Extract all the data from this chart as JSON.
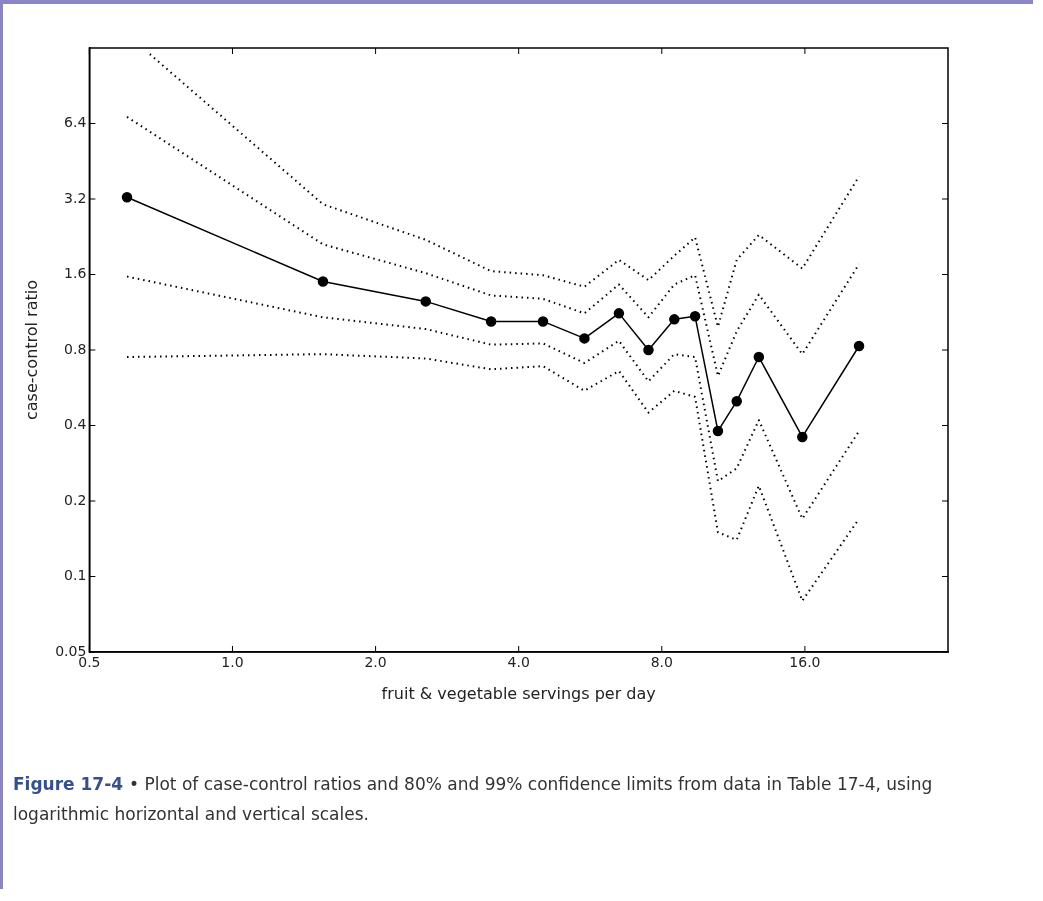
{
  "chart_data": {
    "type": "line",
    "xlabel": "fruit & vegetable servings per day",
    "ylabel": "case-control ratio",
    "annotations": [
      "Figure 17-4",
      "• Plot of case-control ratios and 80% and 99% confidence limits from data in Table 17-4, using logarithmic horizontal and vertical scales."
    ],
    "log": "xy",
    "grid": false,
    "legend": false,
    "xlim": [
      0.5,
      32
    ],
    "xticks": [
      0.5,
      {
        "value": 1,
        "label": "1.0"
      },
      {
        "value": 2,
        "label": "2.0"
      },
      {
        "value": 4,
        "label": "4.0"
      },
      {
        "value": 8,
        "label": "8.0"
      },
      {
        "value": 16,
        "label": "16.0"
      }
    ],
    "ylim": [
      0.05,
      12.8
    ],
    "yticks": [
      0.05,
      0.1,
      0.2,
      0.4,
      0.8,
      1.6,
      3.2,
      6.4
    ],
    "x": [
      0.6,
      1.55,
      2.55,
      3.5,
      4.5,
      5.5,
      6.5,
      7.5,
      8.5,
      9.4,
      10.5,
      11.5,
      12.8,
      15.8,
      20.8
    ],
    "series": [
      {
        "color": "#000000",
        "marker": "circle",
        "line_style": "solid",
        "values": [
          3.25,
          1.5,
          1.25,
          1.04,
          1.04,
          0.89,
          1.12,
          0.8,
          1.06,
          1.09,
          0.38,
          0.5,
          0.75,
          0.36,
          0.83
        ]
      },
      {
        "color": "#000000",
        "marker": "none",
        "line_style": "dotted",
        "values": [
          6.8,
          2.11,
          1.62,
          1.32,
          1.28,
          1.12,
          1.46,
          1.08,
          1.46,
          1.59,
          0.63,
          0.95,
          1.33,
          0.77,
          1.76
        ]
      },
      {
        "color": "#000000",
        "marker": "none",
        "line_style": "dotted",
        "values": [
          1.57,
          1.08,
          0.97,
          0.84,
          0.85,
          0.71,
          0.87,
          0.6,
          0.77,
          0.75,
          0.24,
          0.27,
          0.42,
          0.17,
          0.38
        ]
      },
      {
        "color": "#000000",
        "marker": "none",
        "line_style": "dotted",
        "x": [
          0.67,
          1.55,
          2.55,
          3.5,
          4.5,
          5.5,
          6.5,
          7.5,
          8.5,
          9.4,
          10.5,
          11.5,
          12.8,
          15.8,
          20.8
        ],
        "values": [
          12.1,
          3.05,
          2.2,
          1.65,
          1.59,
          1.43,
          1.83,
          1.52,
          1.9,
          2.25,
          0.99,
          1.83,
          2.3,
          1.69,
          3.94
        ]
      },
      {
        "color": "#000000",
        "marker": "none",
        "line_style": "dotted",
        "values": [
          0.75,
          0.77,
          0.74,
          0.67,
          0.69,
          0.55,
          0.66,
          0.45,
          0.55,
          0.52,
          0.15,
          0.14,
          0.23,
          0.08,
          0.17
        ]
      }
    ]
  }
}
